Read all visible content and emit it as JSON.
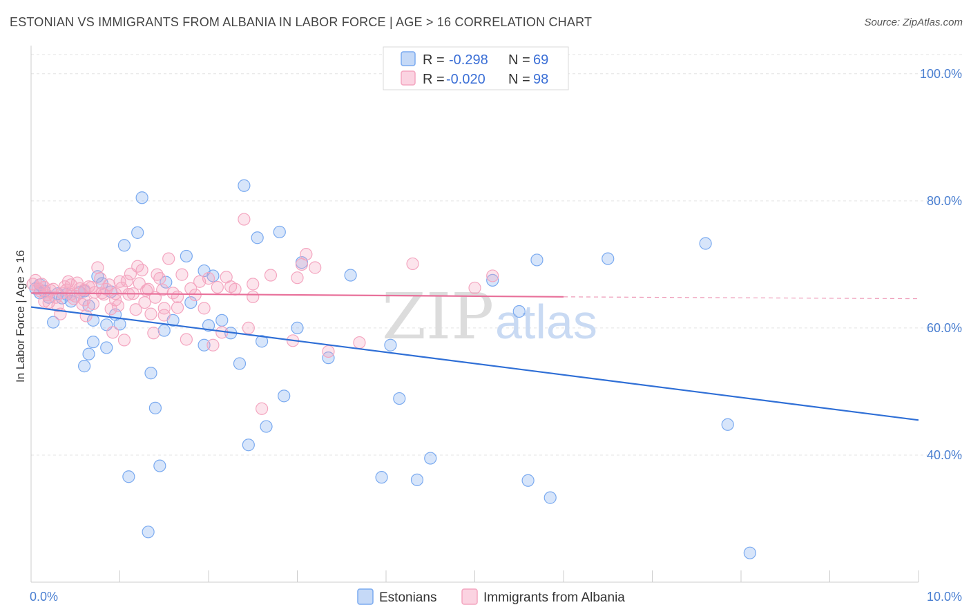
{
  "header": {
    "title": "ESTONIAN VS IMMIGRANTS FROM ALBANIA IN LABOR FORCE | AGE > 16 CORRELATION CHART",
    "source": "Source: ZipAtlas.com"
  },
  "watermark": {
    "zip": "ZIP",
    "atlas": "atlas"
  },
  "legend": {
    "r_label": "R =",
    "n_label": "N =",
    "rows": [
      {
        "r": "-0.298",
        "n": "69",
        "color": "#7aaaf0"
      },
      {
        "r": "-0.020",
        "n": "98",
        "color": "#f4a6c0"
      }
    ]
  },
  "bottom_legend": [
    {
      "label": "Estonians",
      "color": "#7aaaf0"
    },
    {
      "label": "Immigrants from Albania",
      "color": "#f4a6c0"
    }
  ],
  "chart_data": {
    "type": "scatter",
    "title": "ESTONIAN VS IMMIGRANTS FROM ALBANIA IN LABOR FORCE | AGE > 16 CORRELATION CHART",
    "xlabel": "",
    "ylabel": "In Labor Force | Age > 16",
    "xlim": [
      0,
      10
    ],
    "ylim": [
      20,
      104
    ],
    "x_tick_labels": [
      "0.0%",
      "10.0%"
    ],
    "y_ticks": [
      40,
      60,
      80,
      100
    ],
    "y_tick_labels": [
      "40.0%",
      "60.0%",
      "80.0%",
      "100.0%"
    ],
    "series": [
      {
        "name": "Estonians",
        "color": "#7aaaf0",
        "line_color": "#2f6fd6",
        "trend": {
          "x": [
            0,
            10
          ],
          "y": [
            63.3,
            45.5
          ]
        },
        "points": [
          [
            0.05,
            66.2
          ],
          [
            0.1,
            65.5
          ],
          [
            0.15,
            65.8
          ],
          [
            0.2,
            64.8
          ],
          [
            0.3,
            65.4
          ],
          [
            0.35,
            64.7
          ],
          [
            0.25,
            60.9
          ],
          [
            0.45,
            64.2
          ],
          [
            0.55,
            65.6
          ],
          [
            0.6,
            65.8
          ],
          [
            0.65,
            63.5
          ],
          [
            0.7,
            61.2
          ],
          [
            0.75,
            68.1
          ],
          [
            0.8,
            67.0
          ],
          [
            0.85,
            60.5
          ],
          [
            0.9,
            65.7
          ],
          [
            0.95,
            62.1
          ],
          [
            1.0,
            60.6
          ],
          [
            0.6,
            54.0
          ],
          [
            0.65,
            55.9
          ],
          [
            0.7,
            57.8
          ],
          [
            0.85,
            56.9
          ],
          [
            1.05,
            73.0
          ],
          [
            1.2,
            75.0
          ],
          [
            1.35,
            52.9
          ],
          [
            1.4,
            47.4
          ],
          [
            1.45,
            38.3
          ],
          [
            1.5,
            59.6
          ],
          [
            1.52,
            67.2
          ],
          [
            1.6,
            61.2
          ],
          [
            1.75,
            71.3
          ],
          [
            1.95,
            57.3
          ],
          [
            1.95,
            69.0
          ],
          [
            2.0,
            60.4
          ],
          [
            2.05,
            68.2
          ],
          [
            2.15,
            61.2
          ],
          [
            2.25,
            59.2
          ],
          [
            2.35,
            54.4
          ],
          [
            2.4,
            82.4
          ],
          [
            2.45,
            41.6
          ],
          [
            2.55,
            74.2
          ],
          [
            2.6,
            57.9
          ],
          [
            2.65,
            44.5
          ],
          [
            2.8,
            75.1
          ],
          [
            2.85,
            49.3
          ],
          [
            3.0,
            60.0
          ],
          [
            3.05,
            70.3
          ],
          [
            3.35,
            55.3
          ],
          [
            3.6,
            68.3
          ],
          [
            3.95,
            36.5
          ],
          [
            4.05,
            57.3
          ],
          [
            4.15,
            48.9
          ],
          [
            4.35,
            36.1
          ],
          [
            4.5,
            39.5
          ],
          [
            5.6,
            36.0
          ],
          [
            5.2,
            67.5
          ],
          [
            5.5,
            62.6
          ],
          [
            5.7,
            70.7
          ],
          [
            5.85,
            33.3
          ],
          [
            6.5,
            70.9
          ],
          [
            7.6,
            73.3
          ],
          [
            7.85,
            44.8
          ],
          [
            8.1,
            24.6
          ],
          [
            1.1,
            36.6
          ],
          [
            1.32,
            27.9
          ],
          [
            1.8,
            64.0
          ],
          [
            1.25,
            80.5
          ],
          [
            0.4,
            65.3
          ],
          [
            0.1,
            66.8
          ]
        ]
      },
      {
        "name": "Immigrants from Albania",
        "color": "#f4a6c0",
        "line_color": "#e8709a",
        "trend": {
          "x": [
            0,
            6
          ],
          "y": [
            65.5,
            64.9
          ]
        },
        "trend_dashed": {
          "x": [
            6,
            10
          ],
          "y": [
            64.9,
            64.6
          ]
        },
        "points": [
          [
            0.02,
            66.9
          ],
          [
            0.05,
            67.5
          ],
          [
            0.08,
            66.2
          ],
          [
            0.1,
            65.8
          ],
          [
            0.12,
            66.9
          ],
          [
            0.15,
            66.4
          ],
          [
            0.18,
            65.2
          ],
          [
            0.2,
            64.0
          ],
          [
            0.22,
            65.9
          ],
          [
            0.25,
            66.1
          ],
          [
            0.28,
            64.8
          ],
          [
            0.3,
            63.5
          ],
          [
            0.33,
            62.2
          ],
          [
            0.35,
            65.5
          ],
          [
            0.38,
            66.5
          ],
          [
            0.4,
            66.0
          ],
          [
            0.42,
            67.3
          ],
          [
            0.45,
            66.8
          ],
          [
            0.48,
            64.6
          ],
          [
            0.5,
            65.0
          ],
          [
            0.52,
            67.1
          ],
          [
            0.55,
            66.2
          ],
          [
            0.58,
            63.7
          ],
          [
            0.6,
            64.4
          ],
          [
            0.62,
            61.9
          ],
          [
            0.65,
            66.5
          ],
          [
            0.68,
            66.4
          ],
          [
            0.7,
            63.8
          ],
          [
            0.72,
            65.6
          ],
          [
            0.75,
            69.5
          ],
          [
            0.78,
            67.8
          ],
          [
            0.8,
            65.5
          ],
          [
            0.82,
            65.3
          ],
          [
            0.85,
            66.1
          ],
          [
            0.88,
            66.8
          ],
          [
            0.9,
            63.0
          ],
          [
            0.92,
            59.3
          ],
          [
            0.95,
            64.4
          ],
          [
            0.98,
            63.5
          ],
          [
            1.0,
            67.3
          ],
          [
            1.02,
            66.3
          ],
          [
            1.05,
            58.1
          ],
          [
            1.08,
            67.4
          ],
          [
            1.1,
            65.3
          ],
          [
            1.12,
            68.5
          ],
          [
            1.15,
            65.4
          ],
          [
            1.18,
            62.9
          ],
          [
            1.2,
            69.7
          ],
          [
            1.22,
            67.0
          ],
          [
            1.25,
            69.1
          ],
          [
            1.28,
            64.0
          ],
          [
            1.3,
            65.9
          ],
          [
            1.32,
            66.1
          ],
          [
            1.35,
            62.2
          ],
          [
            1.38,
            59.2
          ],
          [
            1.4,
            64.8
          ],
          [
            1.42,
            68.4
          ],
          [
            1.45,
            67.8
          ],
          [
            1.48,
            66.0
          ],
          [
            1.5,
            63.1
          ],
          [
            1.55,
            70.9
          ],
          [
            1.6,
            65.5
          ],
          [
            1.65,
            63.2
          ],
          [
            1.7,
            68.4
          ],
          [
            1.75,
            58.2
          ],
          [
            1.8,
            66.2
          ],
          [
            1.85,
            65.2
          ],
          [
            1.9,
            67.3
          ],
          [
            1.95,
            63.1
          ],
          [
            2.0,
            67.8
          ],
          [
            2.05,
            57.3
          ],
          [
            2.1,
            66.4
          ],
          [
            2.15,
            59.3
          ],
          [
            2.2,
            68.0
          ],
          [
            2.3,
            66.1
          ],
          [
            2.4,
            77.1
          ],
          [
            2.45,
            60.0
          ],
          [
            2.5,
            64.9
          ],
          [
            2.6,
            47.3
          ],
          [
            2.7,
            68.3
          ],
          [
            2.95,
            58.0
          ],
          [
            3.0,
            67.9
          ],
          [
            3.05,
            70.0
          ],
          [
            3.1,
            71.6
          ],
          [
            3.2,
            69.5
          ],
          [
            3.35,
            56.3
          ],
          [
            3.7,
            57.7
          ],
          [
            4.3,
            70.1
          ],
          [
            5.0,
            66.3
          ],
          [
            5.2,
            68.2
          ],
          [
            0.15,
            64.2
          ],
          [
            0.45,
            65.3
          ],
          [
            0.6,
            66.0
          ],
          [
            0.95,
            65.4
          ],
          [
            1.5,
            62.0
          ],
          [
            1.65,
            64.9
          ],
          [
            2.25,
            66.5
          ],
          [
            2.5,
            66.9
          ]
        ]
      }
    ]
  }
}
